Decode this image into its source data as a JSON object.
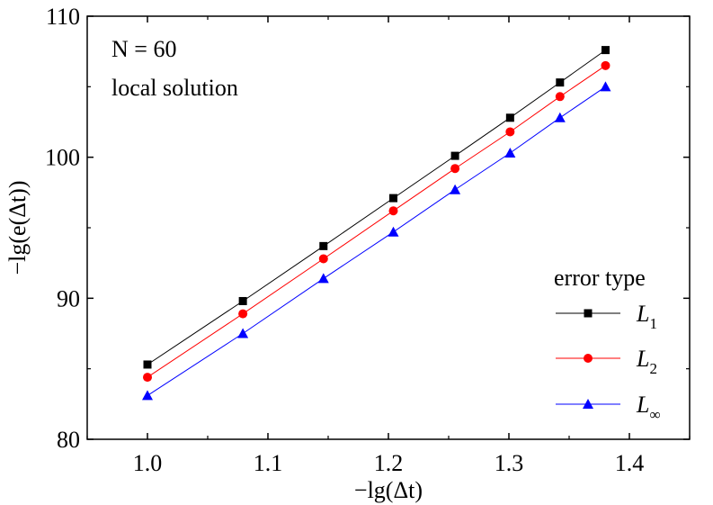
{
  "chart_data": {
    "type": "line",
    "xlabel": "−lg(Δt)",
    "ylabel": "−lg(e(Δt))",
    "xlim": [
      0.95,
      1.45
    ],
    "ylim": [
      80,
      110
    ],
    "xticks": [
      1.0,
      1.1,
      1.2,
      1.3,
      1.4
    ],
    "xtick_labels": [
      "1.0",
      "1.1",
      "1.2",
      "1.3",
      "1.4"
    ],
    "yticks": [
      80,
      90,
      100,
      110
    ],
    "ytick_labels": [
      "80",
      "90",
      "100",
      "110"
    ],
    "grid": false,
    "annotations": {
      "n_label": "N = 60",
      "solution_label": "local solution"
    },
    "legend": {
      "title": "error type",
      "placement": "lower-right"
    },
    "x": [
      1.0,
      1.0792,
      1.1461,
      1.2041,
      1.2553,
      1.301,
      1.3424,
      1.3802
    ],
    "series": [
      {
        "name": "L1",
        "label_main": "L",
        "label_sub": "1",
        "color": "#000000",
        "marker": "square",
        "values": [
          85.3,
          89.8,
          93.7,
          97.1,
          100.1,
          102.8,
          105.3,
          107.6
        ]
      },
      {
        "name": "L2",
        "label_main": "L",
        "label_sub": "2",
        "color": "#ff0000",
        "marker": "circle",
        "values": [
          84.4,
          88.9,
          92.8,
          96.2,
          99.2,
          101.8,
          104.3,
          106.5
        ]
      },
      {
        "name": "L∞",
        "label_main": "L",
        "label_sub": "∞",
        "color": "#0000ff",
        "marker": "triangle",
        "values": [
          83.1,
          87.5,
          91.4,
          94.7,
          97.7,
          100.3,
          102.8,
          105.0
        ]
      }
    ]
  }
}
